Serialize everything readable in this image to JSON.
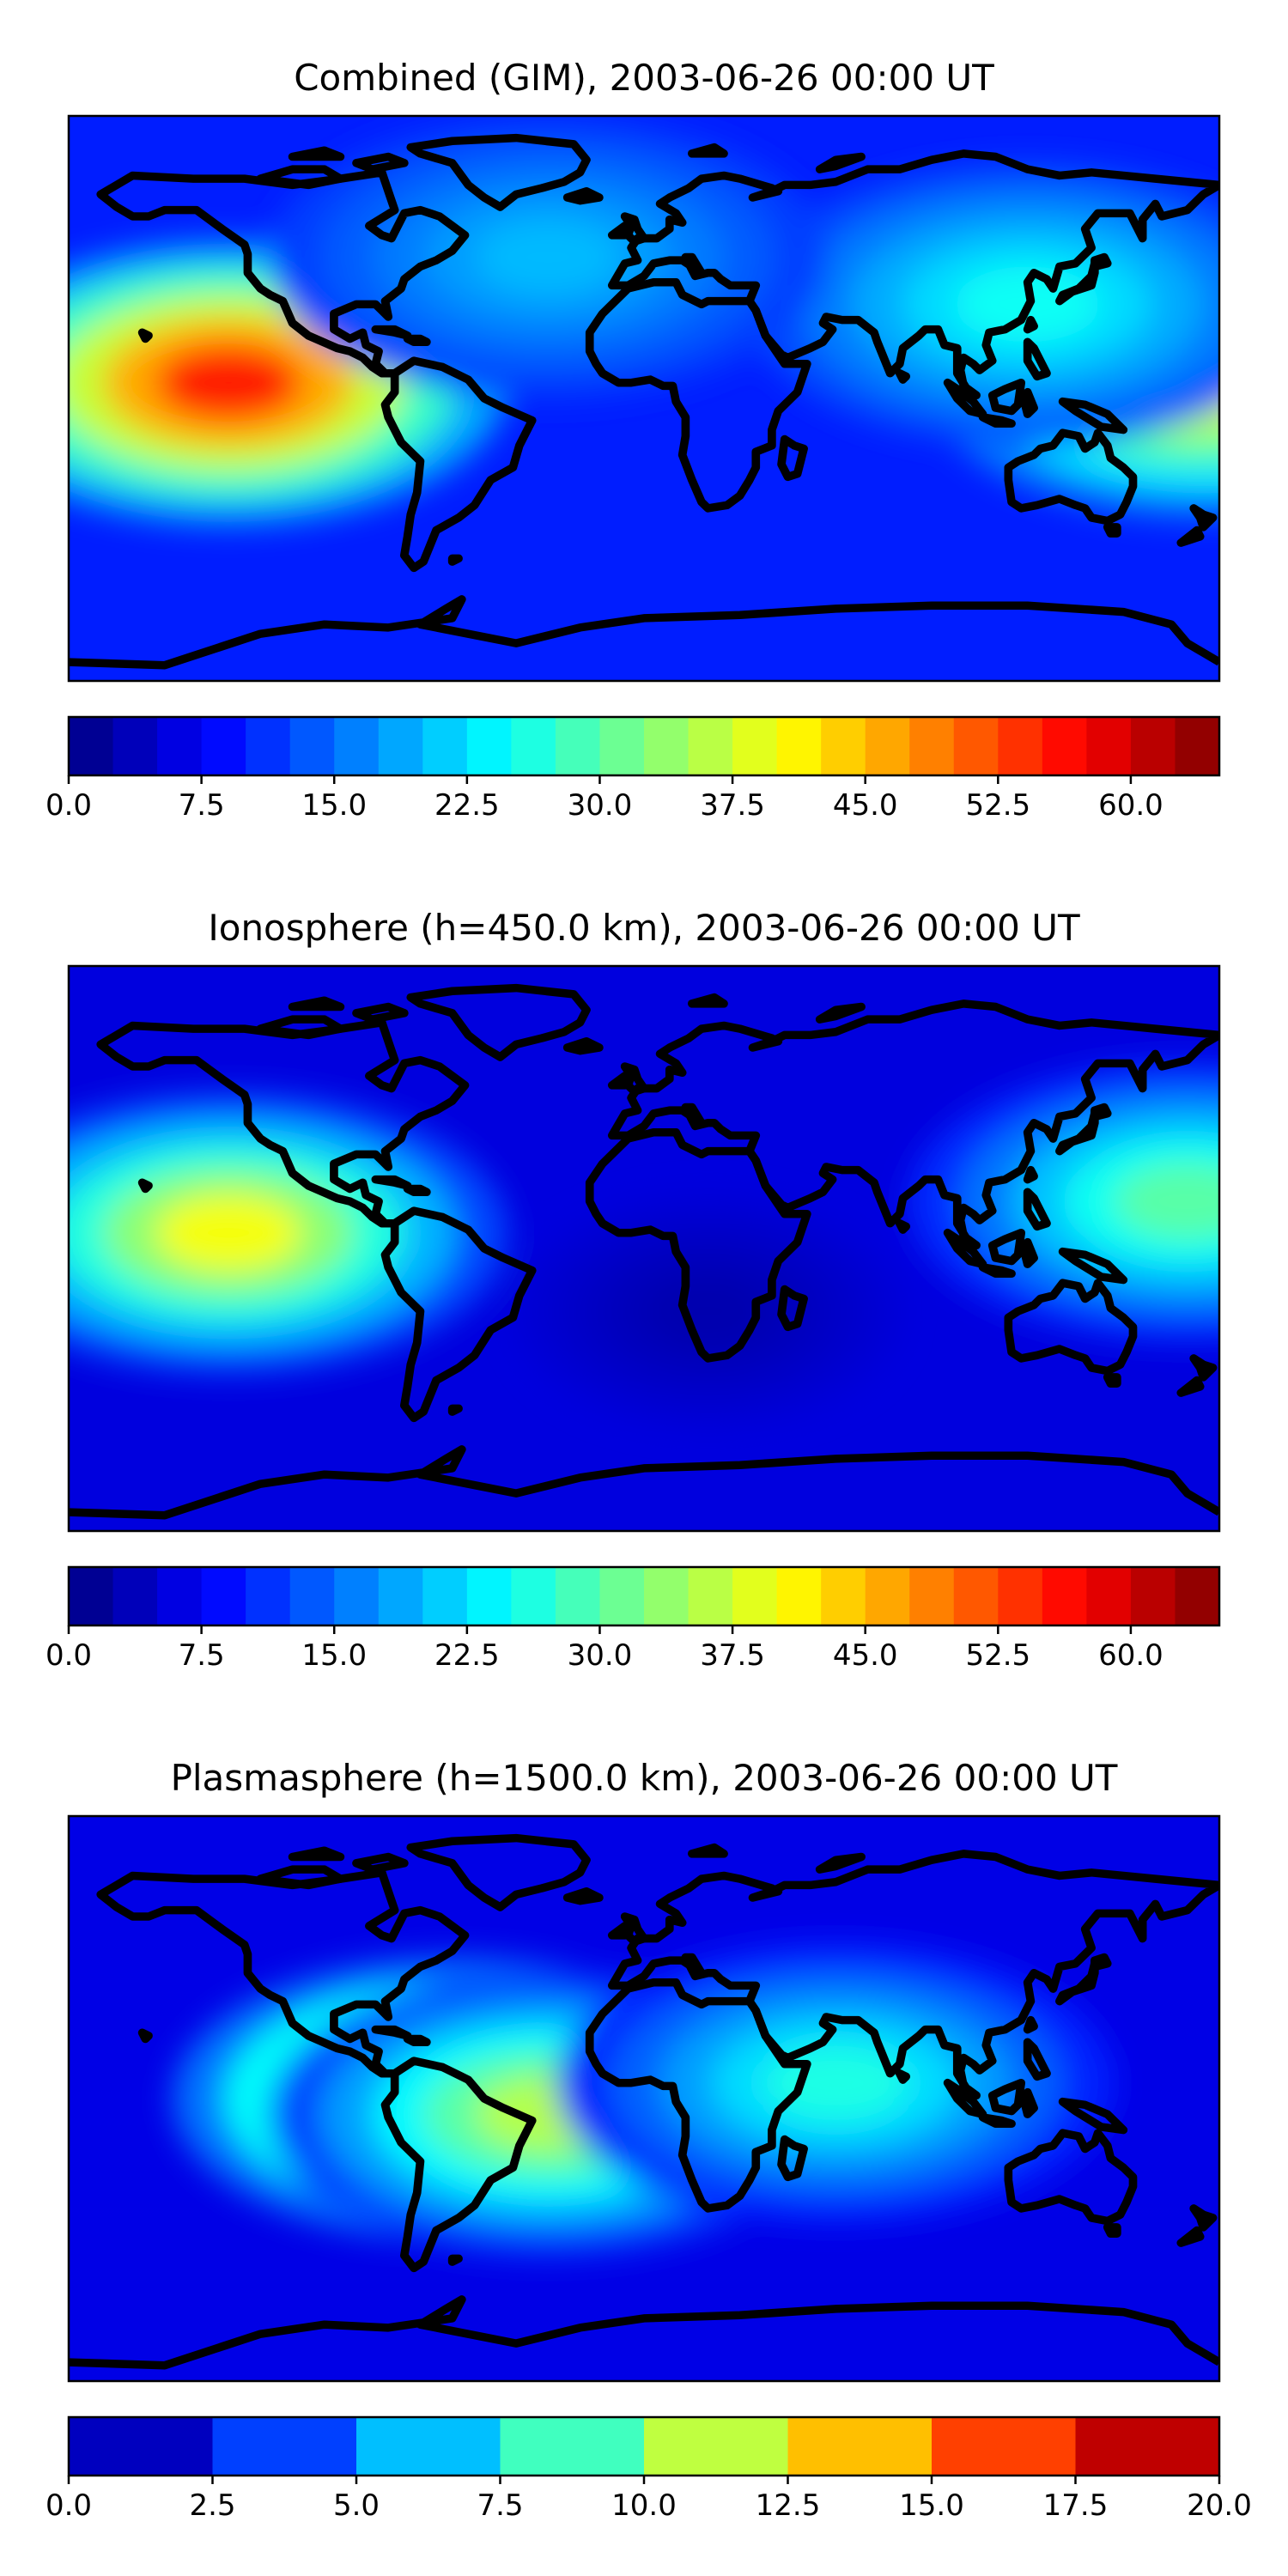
{
  "chart_data": [
    {
      "type": "contour-map",
      "title": "Combined (GIM), 2003-06-26 00:00 UT",
      "projection": "equirectangular world map",
      "coastlines": true,
      "colormap": "jet",
      "colorbar": {
        "range": [
          0,
          65
        ],
        "levels": [
          0,
          2.5,
          5,
          7.5,
          10,
          12.5,
          15,
          17.5,
          20,
          22.5,
          25,
          27.5,
          30,
          32.5,
          35,
          37.5,
          40,
          42.5,
          45,
          47.5,
          50,
          52.5,
          55,
          57.5,
          60,
          62.5,
          65
        ],
        "tick_values": [
          0,
          7.5,
          15,
          22.5,
          30,
          37.5,
          45,
          52.5,
          60
        ],
        "tick_labels": [
          "0.0",
          "7.5",
          "15.0",
          "22.5",
          "30.0",
          "37.5",
          "45.0",
          "52.5",
          "60.0"
        ]
      },
      "background_level": 10,
      "features": [
        {
          "lon": -130,
          "lat": 5,
          "peak": 55,
          "desc": "maximum over eastern Pacific"
        },
        {
          "lon": 175,
          "lat": 7,
          "peak": 42,
          "desc": "western Pacific enhancement"
        },
        {
          "lon": 120,
          "lat": 30,
          "peak": 25,
          "desc": "East Asia"
        },
        {
          "lon": -30,
          "lat": 45,
          "peak": 20,
          "desc": "North Atlantic"
        }
      ]
    },
    {
      "type": "contour-map",
      "title": "Ionosphere  (h=450.0 km), 2003-06-26 00:00 UT",
      "projection": "equirectangular world map",
      "coastlines": true,
      "colormap": "jet",
      "colorbar": {
        "range": [
          0,
          65
        ],
        "levels": [
          0,
          2.5,
          5,
          7.5,
          10,
          12.5,
          15,
          17.5,
          20,
          22.5,
          25,
          27.5,
          30,
          32.5,
          35,
          37.5,
          40,
          42.5,
          45,
          47.5,
          50,
          52.5,
          55,
          57.5,
          60,
          62.5,
          65
        ],
        "tick_values": [
          0,
          7.5,
          15,
          22.5,
          30,
          37.5,
          45,
          52.5,
          60
        ],
        "tick_labels": [
          "0.0",
          "7.5",
          "15.0",
          "22.5",
          "30.0",
          "37.5",
          "45.0",
          "52.5",
          "60.0"
        ]
      },
      "background_level": 6,
      "features": [
        {
          "lon": -130,
          "lat": 5,
          "peak": 40,
          "desc": "maximum over eastern Pacific"
        },
        {
          "lon": 170,
          "lat": 15,
          "peak": 30,
          "desc": "western Pacific enhancement"
        },
        {
          "lon": 20,
          "lat": -20,
          "peak": 3,
          "desc": "minimum over Africa / South Atlantic"
        }
      ]
    },
    {
      "type": "contour-map",
      "title": "Plasmasphere (h=1500.0 km), 2003-06-26 00:00 UT",
      "projection": "equirectangular world map",
      "coastlines": true,
      "colormap": "jet",
      "colorbar": {
        "range": [
          0,
          20
        ],
        "levels": [
          0,
          2.5,
          5,
          7.5,
          10,
          12.5,
          15,
          17.5,
          20
        ],
        "tick_values": [
          0,
          2.5,
          5,
          7.5,
          10,
          12.5,
          15,
          17.5,
          20
        ],
        "tick_labels": [
          "0.0",
          "2.5",
          "5.0",
          "7.5",
          "10.0",
          "12.5",
          "15.0",
          "17.5",
          "20.0"
        ]
      },
      "background_level": 2,
      "features": [
        {
          "lon": -60,
          "lat": 0,
          "peak": 16,
          "desc": "maximum over northern South America"
        },
        {
          "lon": -30,
          "lat": -5,
          "peak": 11,
          "desc": "equatorial band"
        },
        {
          "lon": 60,
          "lat": 5,
          "peak": 8,
          "desc": "Indian Ocean"
        }
      ]
    }
  ]
}
